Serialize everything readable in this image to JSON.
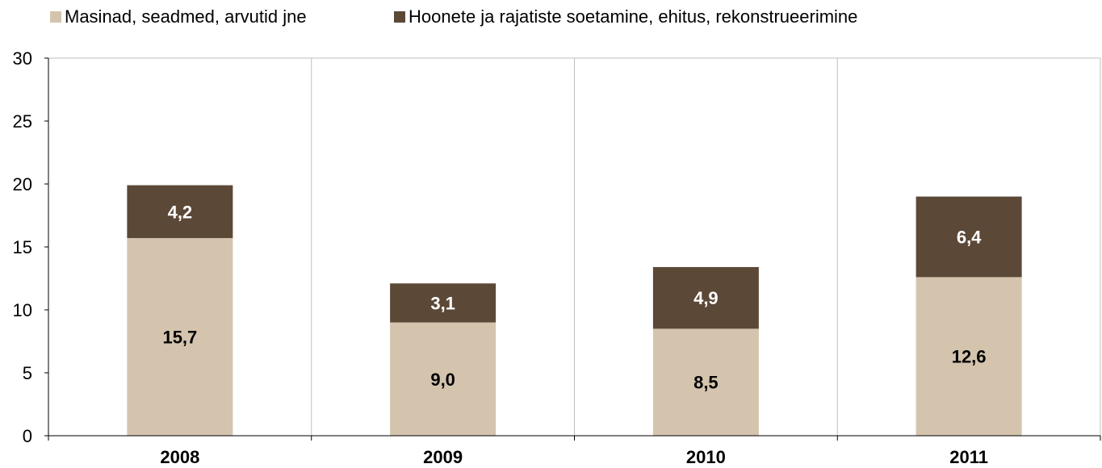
{
  "chart_data": {
    "type": "bar",
    "stacked": true,
    "categories": [
      "2008",
      "2009",
      "2010",
      "2011"
    ],
    "series": [
      {
        "name": "Masinad, seadmed, arvutid jne",
        "values": [
          15.7,
          9.0,
          8.5,
          12.6
        ],
        "labels": [
          "15,7",
          "9,0",
          "8,5",
          "12,6"
        ],
        "color": "#d4c4ae",
        "label_color": "#000000"
      },
      {
        "name": "Hoonete ja rajatiste soetamine, ehitus, rekonstrueerimine",
        "values": [
          4.2,
          3.1,
          4.9,
          6.4
        ],
        "labels": [
          "4,2",
          "3,1",
          "4,9",
          "6,4"
        ],
        "color": "#5c4837",
        "label_color": "#ffffff"
      }
    ],
    "ylim": [
      0,
      30
    ],
    "yticks": [
      "0",
      "5",
      "10",
      "15",
      "20",
      "25",
      "30"
    ],
    "grid": "vertical category separators",
    "legend_position": "top-left"
  }
}
